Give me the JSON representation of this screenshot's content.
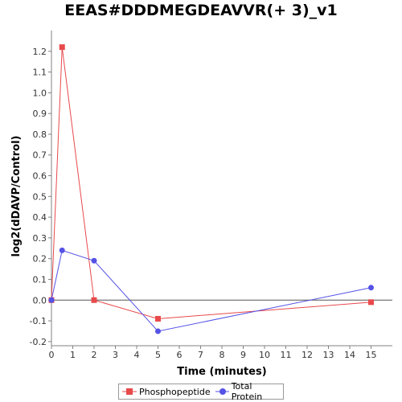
{
  "chart_data": {
    "type": "line",
    "title": "EEAS#DDDMEGDEAVVR(+ 3)_v1",
    "xlabel": "Time (minutes)",
    "ylabel": "log2(dDAVP/Control)",
    "xlim": [
      0,
      16
    ],
    "ylim": [
      -0.22,
      1.3
    ],
    "x_ticks": [
      0,
      1,
      2,
      3,
      4,
      5,
      6,
      7,
      8,
      9,
      10,
      11,
      12,
      13,
      14,
      15
    ],
    "y_ticks": [
      -0.2,
      -0.1,
      0.0,
      0.1,
      0.2,
      0.3,
      0.4,
      0.5,
      0.6,
      0.7,
      0.8,
      0.9,
      1.0,
      1.1,
      1.2
    ],
    "grid": false,
    "zero_line": true,
    "legend_position": "bottom",
    "series": [
      {
        "name": "Phosphopeptide",
        "color": "#e8494b",
        "marker": "square",
        "x": [
          0,
          0.5,
          2,
          5,
          15
        ],
        "y": [
          0.0,
          1.22,
          0.0,
          -0.09,
          -0.01
        ]
      },
      {
        "name": "Total Protein",
        "color": "#5552e6",
        "marker": "circle",
        "x": [
          0,
          0.5,
          2,
          5,
          15
        ],
        "y": [
          0.0,
          0.24,
          0.19,
          -0.15,
          0.06
        ]
      }
    ]
  }
}
